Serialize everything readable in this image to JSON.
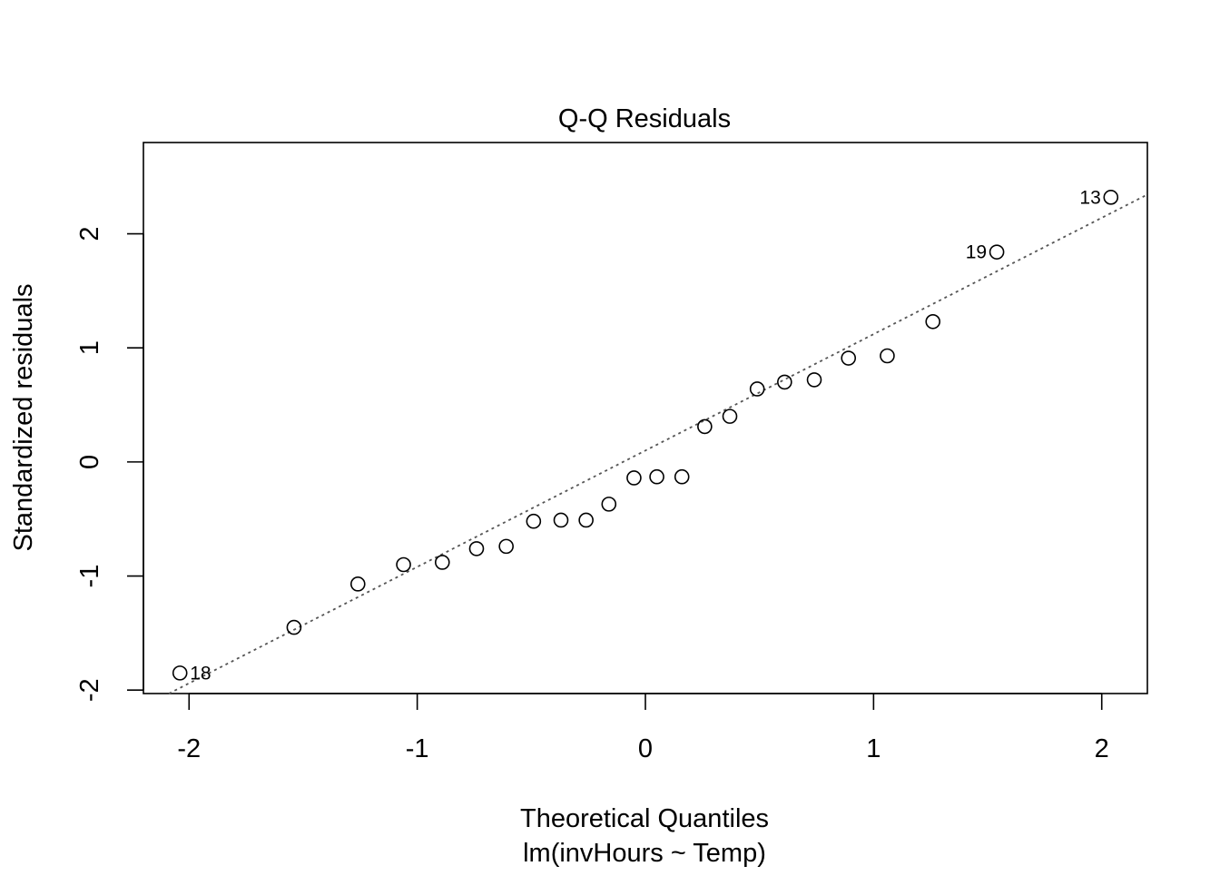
{
  "chart_data": {
    "type": "scatter",
    "title": "Q-Q Residuals",
    "xlabel": "Theoretical Quantiles",
    "xlabel_sub": "lm(invHours ~ Temp)",
    "ylabel": "Standardized residuals",
    "xlim": [
      -2.2,
      2.2
    ],
    "ylim": [
      -2.03,
      2.8
    ],
    "x_ticks": [
      -2,
      -1,
      0,
      1,
      2
    ],
    "x_tick_labels": [
      "-2",
      "-1",
      "0",
      "1",
      "2"
    ],
    "y_ticks": [
      -2,
      -1,
      0,
      1,
      2
    ],
    "y_tick_labels": [
      "-2",
      "-1",
      "0",
      "1",
      "2"
    ],
    "grid": false,
    "points": [
      {
        "x": -2.04,
        "y": -1.85,
        "label": "18"
      },
      {
        "x": -1.54,
        "y": -1.45
      },
      {
        "x": -1.26,
        "y": -1.07
      },
      {
        "x": -1.06,
        "y": -0.9
      },
      {
        "x": -0.89,
        "y": -0.88
      },
      {
        "x": -0.74,
        "y": -0.76
      },
      {
        "x": -0.61,
        "y": -0.74
      },
      {
        "x": -0.49,
        "y": -0.52
      },
      {
        "x": -0.37,
        "y": -0.51
      },
      {
        "x": -0.26,
        "y": -0.51
      },
      {
        "x": -0.16,
        "y": -0.37
      },
      {
        "x": -0.05,
        "y": -0.14
      },
      {
        "x": 0.05,
        "y": -0.13
      },
      {
        "x": 0.16,
        "y": -0.13
      },
      {
        "x": 0.26,
        "y": 0.31
      },
      {
        "x": 0.37,
        "y": 0.4
      },
      {
        "x": 0.49,
        "y": 0.64
      },
      {
        "x": 0.61,
        "y": 0.7
      },
      {
        "x": 0.74,
        "y": 0.72
      },
      {
        "x": 0.89,
        "y": 0.91
      },
      {
        "x": 1.06,
        "y": 0.93
      },
      {
        "x": 1.26,
        "y": 1.23
      },
      {
        "x": 1.54,
        "y": 1.84,
        "label": "19"
      },
      {
        "x": 2.04,
        "y": 2.32,
        "label": "13"
      }
    ],
    "reference_line": {
      "style": "dotted",
      "color": "#555555",
      "intercept": 0.1,
      "slope": 1.02
    },
    "point_style": {
      "shape": "open-circle",
      "color": "#000000"
    }
  }
}
